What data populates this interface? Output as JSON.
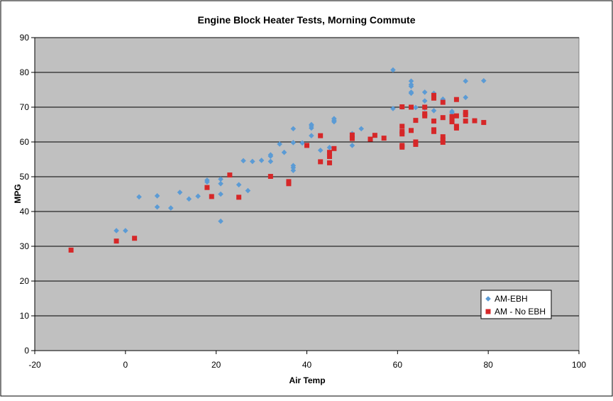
{
  "chart_data": {
    "type": "scatter",
    "title": "Engine Block Heater Tests, Morning Commute",
    "xlabel": "Air Temp",
    "ylabel": "MPG",
    "xlim": [
      -20,
      100
    ],
    "ylim": [
      0,
      90
    ],
    "xticks": [
      -20,
      0,
      20,
      40,
      60,
      80,
      100
    ],
    "yticks": [
      0,
      10,
      20,
      30,
      40,
      50,
      60,
      70,
      80,
      90
    ],
    "grid": "horizontal",
    "plot_background": "#c0c0c0",
    "legend_position": "bottom-right",
    "series": [
      {
        "name": "AM-EBH",
        "marker": "diamond",
        "color": "#5b9bd5",
        "points": [
          [
            -2,
            34.5
          ],
          [
            0,
            34.5
          ],
          [
            3,
            44.2
          ],
          [
            7,
            41.3
          ],
          [
            7,
            44.5
          ],
          [
            10,
            41
          ],
          [
            12,
            45.5
          ],
          [
            14,
            43.6
          ],
          [
            16,
            44.4
          ],
          [
            18,
            48.5
          ],
          [
            18,
            49
          ],
          [
            21,
            49.3
          ],
          [
            21,
            48
          ],
          [
            21,
            45
          ],
          [
            21,
            37.2
          ],
          [
            25,
            47.7
          ],
          [
            26,
            54.6
          ],
          [
            27,
            46
          ],
          [
            28,
            54.4
          ],
          [
            30,
            54.7
          ],
          [
            32,
            54.4
          ],
          [
            32,
            55.9
          ],
          [
            32,
            56.3
          ],
          [
            34,
            59.4
          ],
          [
            35,
            57
          ],
          [
            37,
            51.8
          ],
          [
            37,
            52.6
          ],
          [
            37,
            53.2
          ],
          [
            37,
            59.8
          ],
          [
            37,
            63.8
          ],
          [
            39,
            59.7
          ],
          [
            41,
            61.8
          ],
          [
            41,
            64
          ],
          [
            41,
            64.6
          ],
          [
            41,
            65
          ],
          [
            43,
            57.6
          ],
          [
            45,
            58.4
          ],
          [
            46,
            65.8
          ],
          [
            46,
            66.2
          ],
          [
            46,
            66.7
          ],
          [
            50,
            59
          ],
          [
            50,
            62.4
          ],
          [
            52,
            63.8
          ],
          [
            59,
            80.7
          ],
          [
            59,
            69.6
          ],
          [
            61,
            70
          ],
          [
            63,
            77.5
          ],
          [
            63,
            76.5
          ],
          [
            63,
            76
          ],
          [
            63,
            74.3
          ],
          [
            63,
            74
          ],
          [
            64,
            69.9
          ],
          [
            66,
            74.3
          ],
          [
            66,
            71.8
          ],
          [
            66,
            69.7
          ],
          [
            68,
            74
          ],
          [
            68,
            69
          ],
          [
            70,
            72.3
          ],
          [
            72,
            68.8
          ],
          [
            72,
            68.4
          ],
          [
            75,
            77.5
          ],
          [
            75,
            72.8
          ],
          [
            79,
            77.6
          ]
        ]
      },
      {
        "name": "AM - No EBH",
        "marker": "square",
        "color": "#d62728",
        "points": [
          [
            -12,
            28.9
          ],
          [
            -2,
            31.5
          ],
          [
            2,
            32.3
          ],
          [
            18,
            46.9
          ],
          [
            19,
            44.3
          ],
          [
            23,
            50.5
          ],
          [
            25,
            44.1
          ],
          [
            32,
            50.1
          ],
          [
            36,
            48
          ],
          [
            36,
            48.6
          ],
          [
            40,
            59
          ],
          [
            43,
            61.8
          ],
          [
            43,
            54.3
          ],
          [
            45,
            57
          ],
          [
            45,
            55.8
          ],
          [
            45,
            54
          ],
          [
            46,
            58.1
          ],
          [
            50,
            61
          ],
          [
            50,
            62
          ],
          [
            54,
            60.8
          ],
          [
            55,
            61.9
          ],
          [
            57,
            61.1
          ],
          [
            61,
            70.1
          ],
          [
            61,
            64.5
          ],
          [
            61,
            63
          ],
          [
            61,
            62.3
          ],
          [
            61,
            59
          ],
          [
            61,
            58.5
          ],
          [
            63,
            70
          ],
          [
            63,
            63.3
          ],
          [
            64,
            66.2
          ],
          [
            64,
            60
          ],
          [
            64,
            59.3
          ],
          [
            66,
            70
          ],
          [
            66,
            67.5
          ],
          [
            66,
            68.1
          ],
          [
            68,
            73.4
          ],
          [
            68,
            72.6
          ],
          [
            68,
            66
          ],
          [
            68,
            63.5
          ],
          [
            68,
            63
          ],
          [
            70,
            71.4
          ],
          [
            70,
            67
          ],
          [
            70,
            61.5
          ],
          [
            70,
            60.6
          ],
          [
            70,
            59.9
          ],
          [
            72,
            67.3
          ],
          [
            72,
            66.6
          ],
          [
            72,
            65.8
          ],
          [
            73,
            72.2
          ],
          [
            73,
            67.5
          ],
          [
            73,
            64.5
          ],
          [
            73,
            64
          ],
          [
            75,
            68.5
          ],
          [
            75,
            67.8
          ],
          [
            75,
            66
          ],
          [
            77,
            66.1
          ],
          [
            79,
            65.6
          ]
        ]
      }
    ]
  }
}
